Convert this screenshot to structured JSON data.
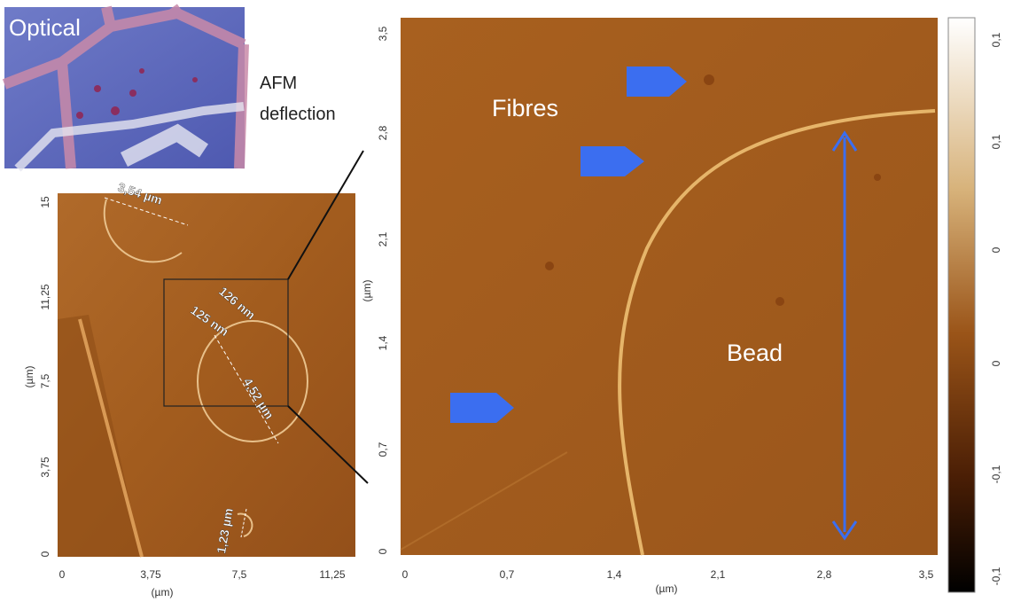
{
  "optical": {
    "label": "Optical"
  },
  "afm_label": {
    "line1": "AFM",
    "line2": "deflection"
  },
  "left_image": {
    "yticks": [
      "15",
      "11,25",
      "7,5",
      "3,75",
      "0"
    ],
    "xticks": [
      "0",
      "3,75",
      "7,5",
      "11,25"
    ],
    "ylabel": "(µm)",
    "xlabel": "(µm)",
    "annotations": [
      "3,54 µm",
      "126 nm",
      "125 nm",
      "4,52 µm",
      "1,23 µm"
    ]
  },
  "right_image": {
    "yticks": [
      "3,5",
      "2,8",
      "2,1",
      "1,4",
      "0,7",
      "0"
    ],
    "xticks": [
      "0",
      "0,7",
      "1,4",
      "2,1",
      "2,8",
      "3,5"
    ],
    "ylabel": "(µm)",
    "xlabel": "(µm)",
    "labels": [
      "Fibres",
      "Bead"
    ]
  },
  "colorbar": {
    "ticks": [
      "0,1",
      "0,1",
      "0",
      "0",
      "-0,1",
      "-0,1"
    ]
  }
}
